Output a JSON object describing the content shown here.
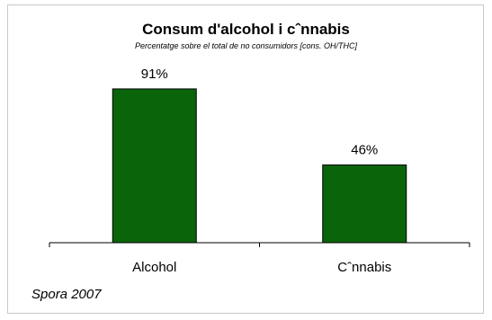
{
  "chart_data": {
    "type": "bar",
    "title": "Consum d'alcohol i cˆnnabis",
    "subtitle": "Percentatge sobre el total de no consumidors [cons. OH/THC]",
    "categories": [
      "Alcohol",
      "Cˆnnabis"
    ],
    "values": [
      91,
      46
    ],
    "data_labels": [
      "91%",
      "46%"
    ],
    "xlabel": "",
    "ylabel": "",
    "ylim": [
      0,
      100
    ],
    "grid": false,
    "legend": "none",
    "bar_color": "#0a640a",
    "bar_edge_color": "#000000"
  },
  "source_note": "Spora 2007"
}
